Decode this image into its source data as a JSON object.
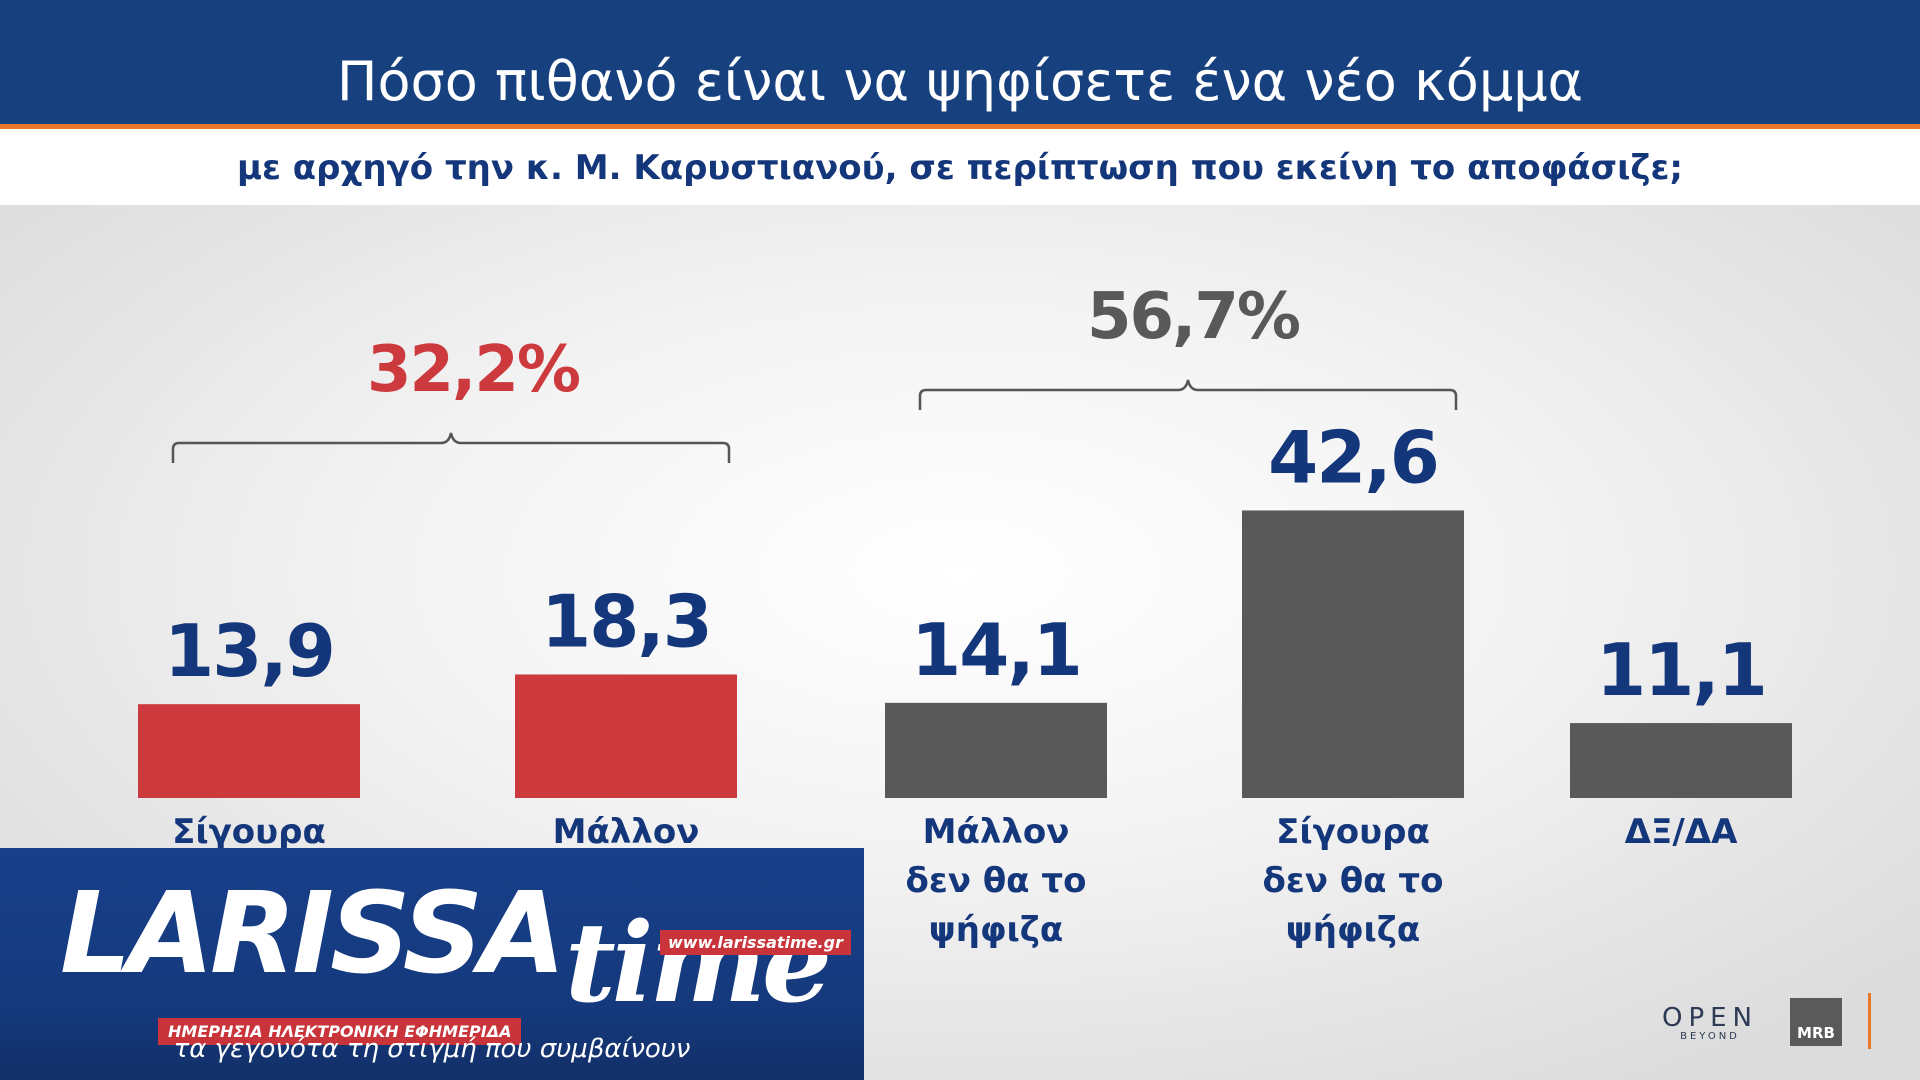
{
  "header": {
    "title": "Πόσο πιθανό είναι να ψηφίσετε ένα νέο κόμμα",
    "subtitle": "με αρχηγό την κ. Μ. Καρυστιανού, σε περίπτωση που εκείνη το αποφάσιζε;"
  },
  "chart_data": {
    "type": "bar",
    "title": "Πόσο πιθανό είναι να ψηφίσετε ένα νέο κόμμα",
    "subtitle": "με αρχηγό την κ. Μ. Καρυστιανού, σε περίπτωση που εκείνη το αποφάσιζε;",
    "categories": [
      [
        "Σίγουρα"
      ],
      [
        "Μάλλον"
      ],
      [
        "Μάλλον",
        "δεν θα το",
        "ψήφιζα"
      ],
      [
        "Σίγουρα",
        "δεν θα το",
        "ψήφιζα"
      ],
      [
        "ΔΞ/ΔΑ"
      ]
    ],
    "values": [
      13.9,
      18.3,
      14.1,
      42.6,
      11.1
    ],
    "value_labels": [
      "13,9",
      "18,3",
      "14,1",
      "42,6",
      "11,1"
    ],
    "bar_colors": [
      "#cc3a3e",
      "#cc3a3e",
      "#595959",
      "#595959",
      "#595959"
    ],
    "groups": [
      {
        "label": "32,2%",
        "color": "#cc3a3e",
        "from": 0,
        "to": 1
      },
      {
        "label": "56,7%",
        "color": "#595959",
        "from": 2,
        "to": 3
      }
    ],
    "grid": false,
    "legend": "none"
  },
  "colors": {
    "header_bg": "#17407f",
    "accent": "#e8782c",
    "text_navy": "#14367a"
  },
  "branding": {
    "larissa_word": "LARISSA",
    "larissa_time": "time",
    "larissa_url": "www.larissatime.gr",
    "larissa_tag": "ΗΜΕΡΗΣΙΑ ΗΛΕΚΤΡΟΝΙΚΗ ΕΦΗΜΕΡΙΔΑ",
    "larissa_slogan": "τα γεγονότα τη στιγμή που συμβαίνουν",
    "open_main": "OPEN",
    "open_sub": "BEYOND",
    "mrb": "MRB"
  }
}
